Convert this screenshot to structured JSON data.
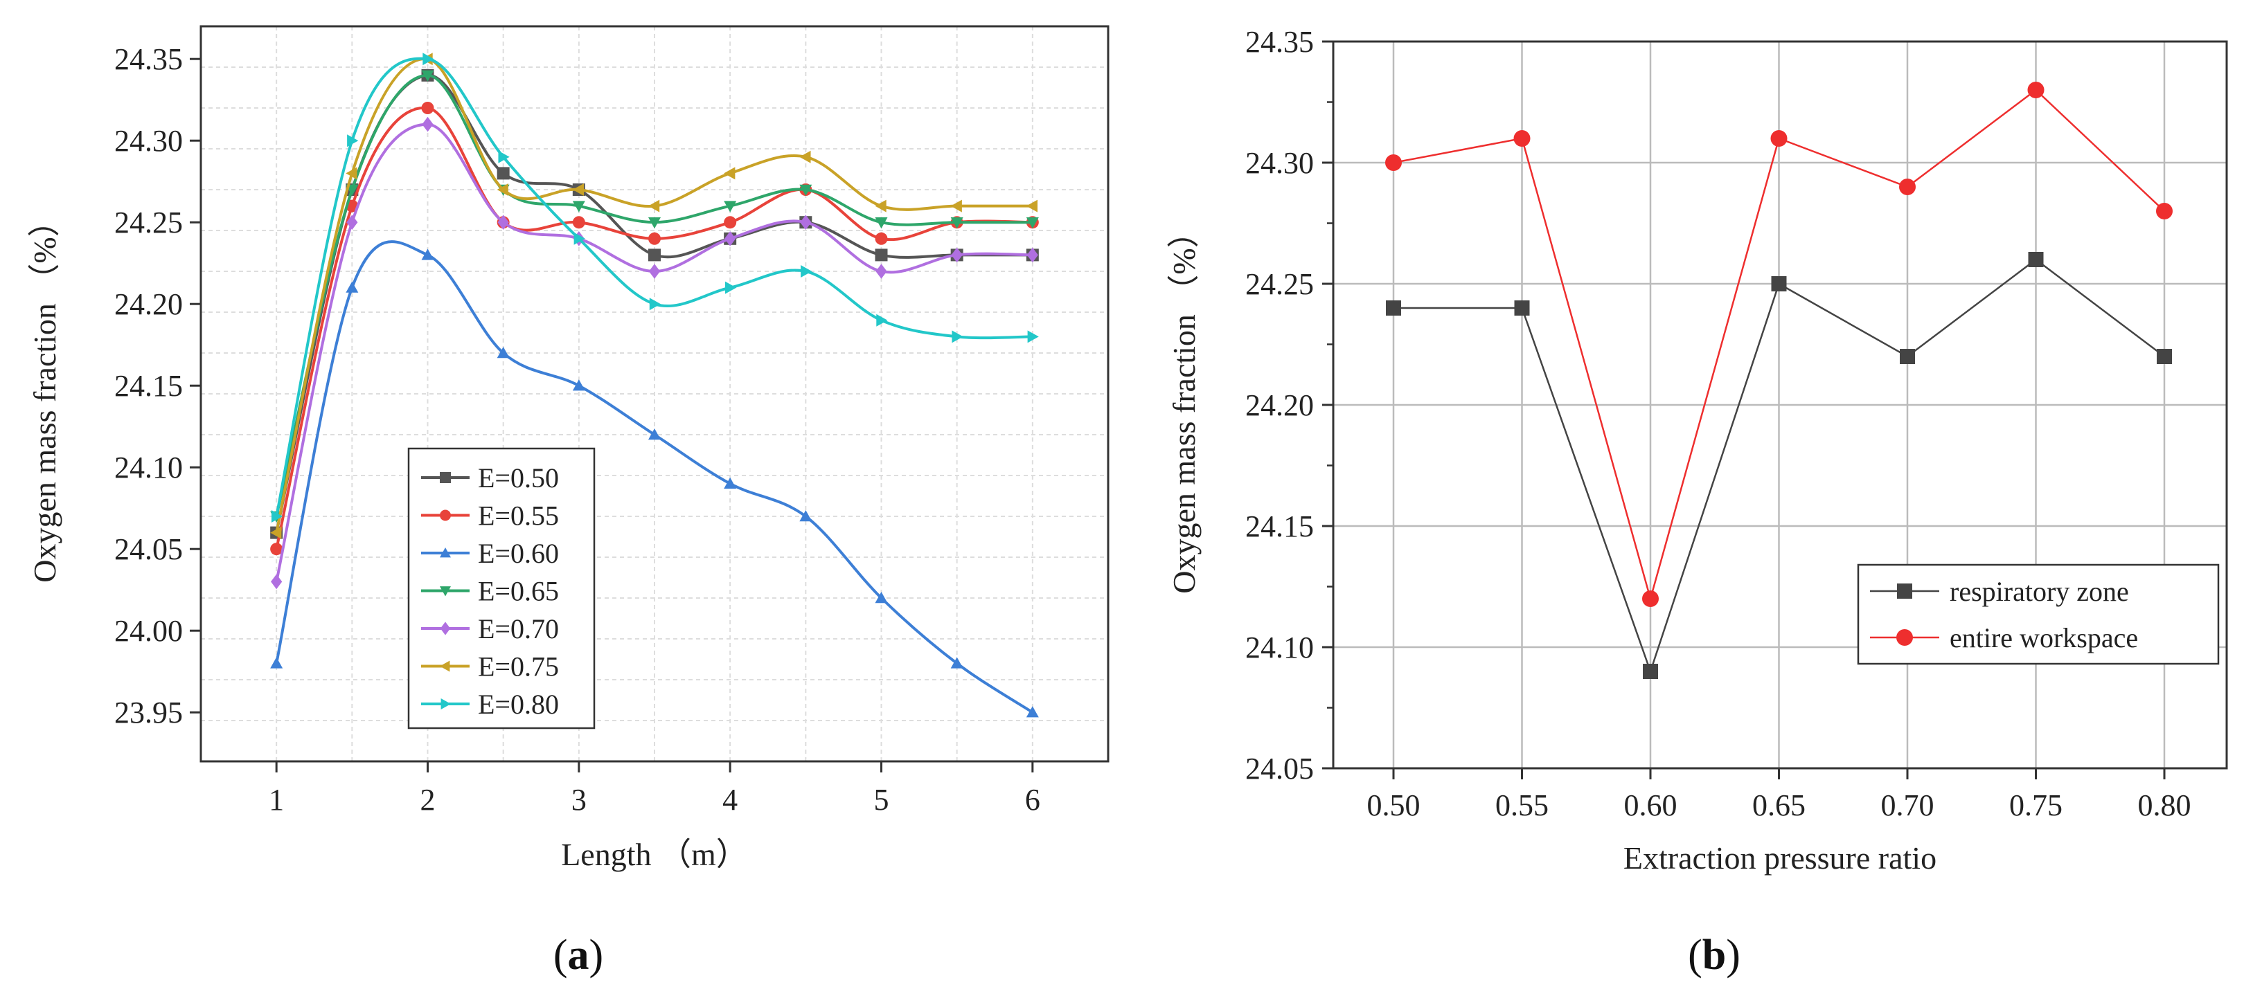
{
  "figure": {
    "panel_a_label": "(a)",
    "panel_a_letter": "a",
    "panel_b_label": "(b)",
    "panel_b_letter": "b"
  },
  "chart_data": [
    {
      "id": "a",
      "type": "line",
      "title": "",
      "xlabel": "Length （m）",
      "ylabel": "Oxygen mass fraction （%）",
      "xlim": [
        0.5,
        6.5
      ],
      "ylim": [
        23.92,
        24.37
      ],
      "xticks": [
        1,
        2,
        3,
        4,
        5,
        6
      ],
      "xtick_labels": [
        "1",
        "2",
        "3",
        "4",
        "5",
        "6"
      ],
      "yticks": [
        23.95,
        24.0,
        24.05,
        24.1,
        24.15,
        24.2,
        24.25,
        24.3,
        24.35
      ],
      "ytick_labels": [
        "23.95",
        "24.00",
        "24.05",
        "24.10",
        "24.15",
        "24.20",
        "24.25",
        "24.30",
        "24.35"
      ],
      "grid": true,
      "legend_position": "bottom-center",
      "x": [
        1,
        1.5,
        2,
        2.5,
        3,
        3.5,
        4,
        4.5,
        5,
        5.5,
        6
      ],
      "series": [
        {
          "name": "E=0.50",
          "color": "#555555",
          "marker": "square",
          "values": [
            24.06,
            24.27,
            24.34,
            24.28,
            24.27,
            24.23,
            24.24,
            24.25,
            24.23,
            24.23,
            24.23
          ]
        },
        {
          "name": "E=0.55",
          "color": "#e8433a",
          "marker": "circle",
          "values": [
            24.05,
            24.26,
            24.32,
            24.25,
            24.25,
            24.24,
            24.25,
            24.27,
            24.24,
            24.25,
            24.25
          ]
        },
        {
          "name": "E=0.60",
          "color": "#3d7fd6",
          "marker": "triangle-up",
          "values": [
            23.98,
            24.21,
            24.23,
            24.17,
            24.15,
            24.12,
            24.09,
            24.07,
            24.02,
            23.98,
            23.95
          ]
        },
        {
          "name": "E=0.65",
          "color": "#2ea66a",
          "marker": "triangle-down",
          "values": [
            24.07,
            24.27,
            24.34,
            24.27,
            24.26,
            24.25,
            24.26,
            24.27,
            24.25,
            24.25,
            24.25
          ]
        },
        {
          "name": "E=0.70",
          "color": "#b06fe0",
          "marker": "diamond",
          "values": [
            24.03,
            24.25,
            24.31,
            24.25,
            24.24,
            24.22,
            24.24,
            24.25,
            24.22,
            24.23,
            24.23
          ]
        },
        {
          "name": "E=0.75",
          "color": "#c9a227",
          "marker": "triangle-left",
          "values": [
            24.06,
            24.28,
            24.35,
            24.27,
            24.27,
            24.26,
            24.28,
            24.29,
            24.26,
            24.26,
            24.26
          ]
        },
        {
          "name": "E=0.80",
          "color": "#22c7c9",
          "marker": "triangle-right",
          "values": [
            24.07,
            24.3,
            24.35,
            24.29,
            24.24,
            24.2,
            24.21,
            24.22,
            24.19,
            24.18,
            24.18
          ]
        }
      ]
    },
    {
      "id": "b",
      "type": "line",
      "title": "",
      "xlabel": "Extraction pressure ratio",
      "ylabel": "Oxygen mass fraction （%）",
      "ylim": [
        24.05,
        24.35
      ],
      "categories": [
        "0.50",
        "0.55",
        "0.60",
        "0.65",
        "0.70",
        "0.75",
        "0.80"
      ],
      "yticks": [
        24.05,
        24.1,
        24.15,
        24.2,
        24.25,
        24.3,
        24.35
      ],
      "ytick_labels": [
        "24.05",
        "24.10",
        "24.15",
        "24.20",
        "24.25",
        "24.30",
        "24.35"
      ],
      "grid": true,
      "legend_position": "bottom-right",
      "series": [
        {
          "name": "respiratory zone",
          "color": "#444444",
          "marker": "square",
          "values": [
            24.24,
            24.24,
            24.09,
            24.25,
            24.22,
            24.26,
            24.22
          ]
        },
        {
          "name": "entire workspace",
          "color": "#ee2e2e",
          "marker": "circle",
          "values": [
            24.3,
            24.31,
            24.12,
            24.31,
            24.29,
            24.33,
            24.28
          ]
        }
      ]
    }
  ]
}
